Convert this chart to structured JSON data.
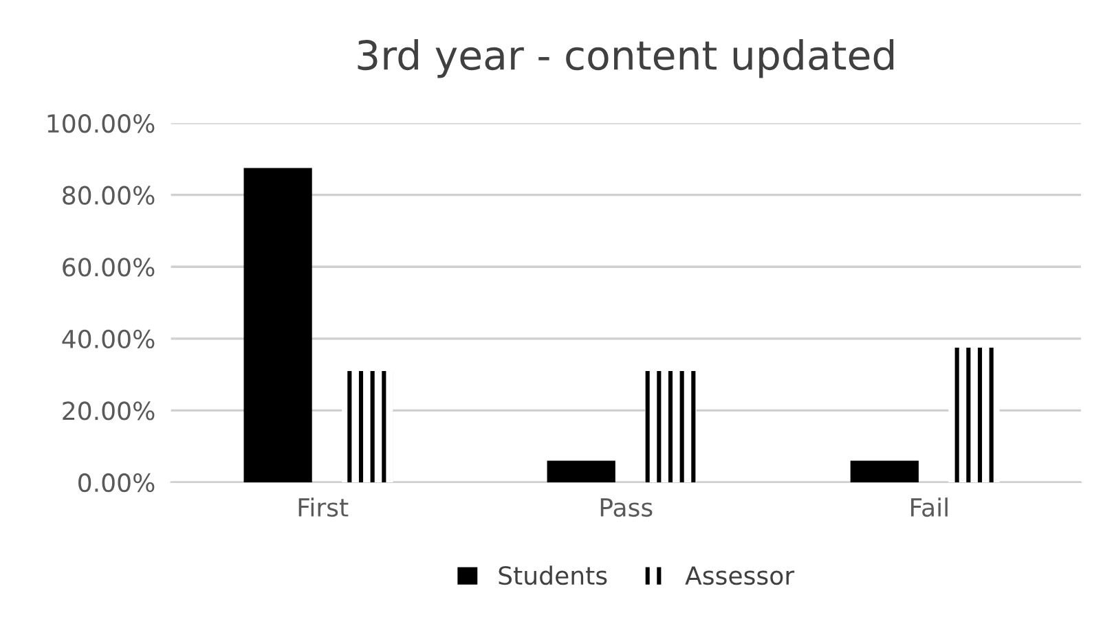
{
  "chart_data": {
    "type": "bar",
    "title": "3rd year - content updated",
    "categories": [
      "First",
      "Pass",
      "Fail"
    ],
    "series": [
      {
        "name": "Students",
        "color": "#000000",
        "values": [
          87.5,
          6,
          6
        ]
      },
      {
        "name": "Assessor",
        "color": "#000000",
        "values": [
          31,
          31,
          37.5
        ]
      }
    ],
    "ylim": [
      0,
      100
    ],
    "yticks": [
      {
        "value": 0,
        "label": "0.00%"
      },
      {
        "value": 20,
        "label": "20.00%"
      },
      {
        "value": 40,
        "label": "40.00%"
      },
      {
        "value": 60,
        "label": "60.00%"
      },
      {
        "value": 80,
        "label": "80.00%"
      },
      {
        "value": 100,
        "label": "100.00%"
      }
    ],
    "grid": "y",
    "legend": "bottom"
  }
}
